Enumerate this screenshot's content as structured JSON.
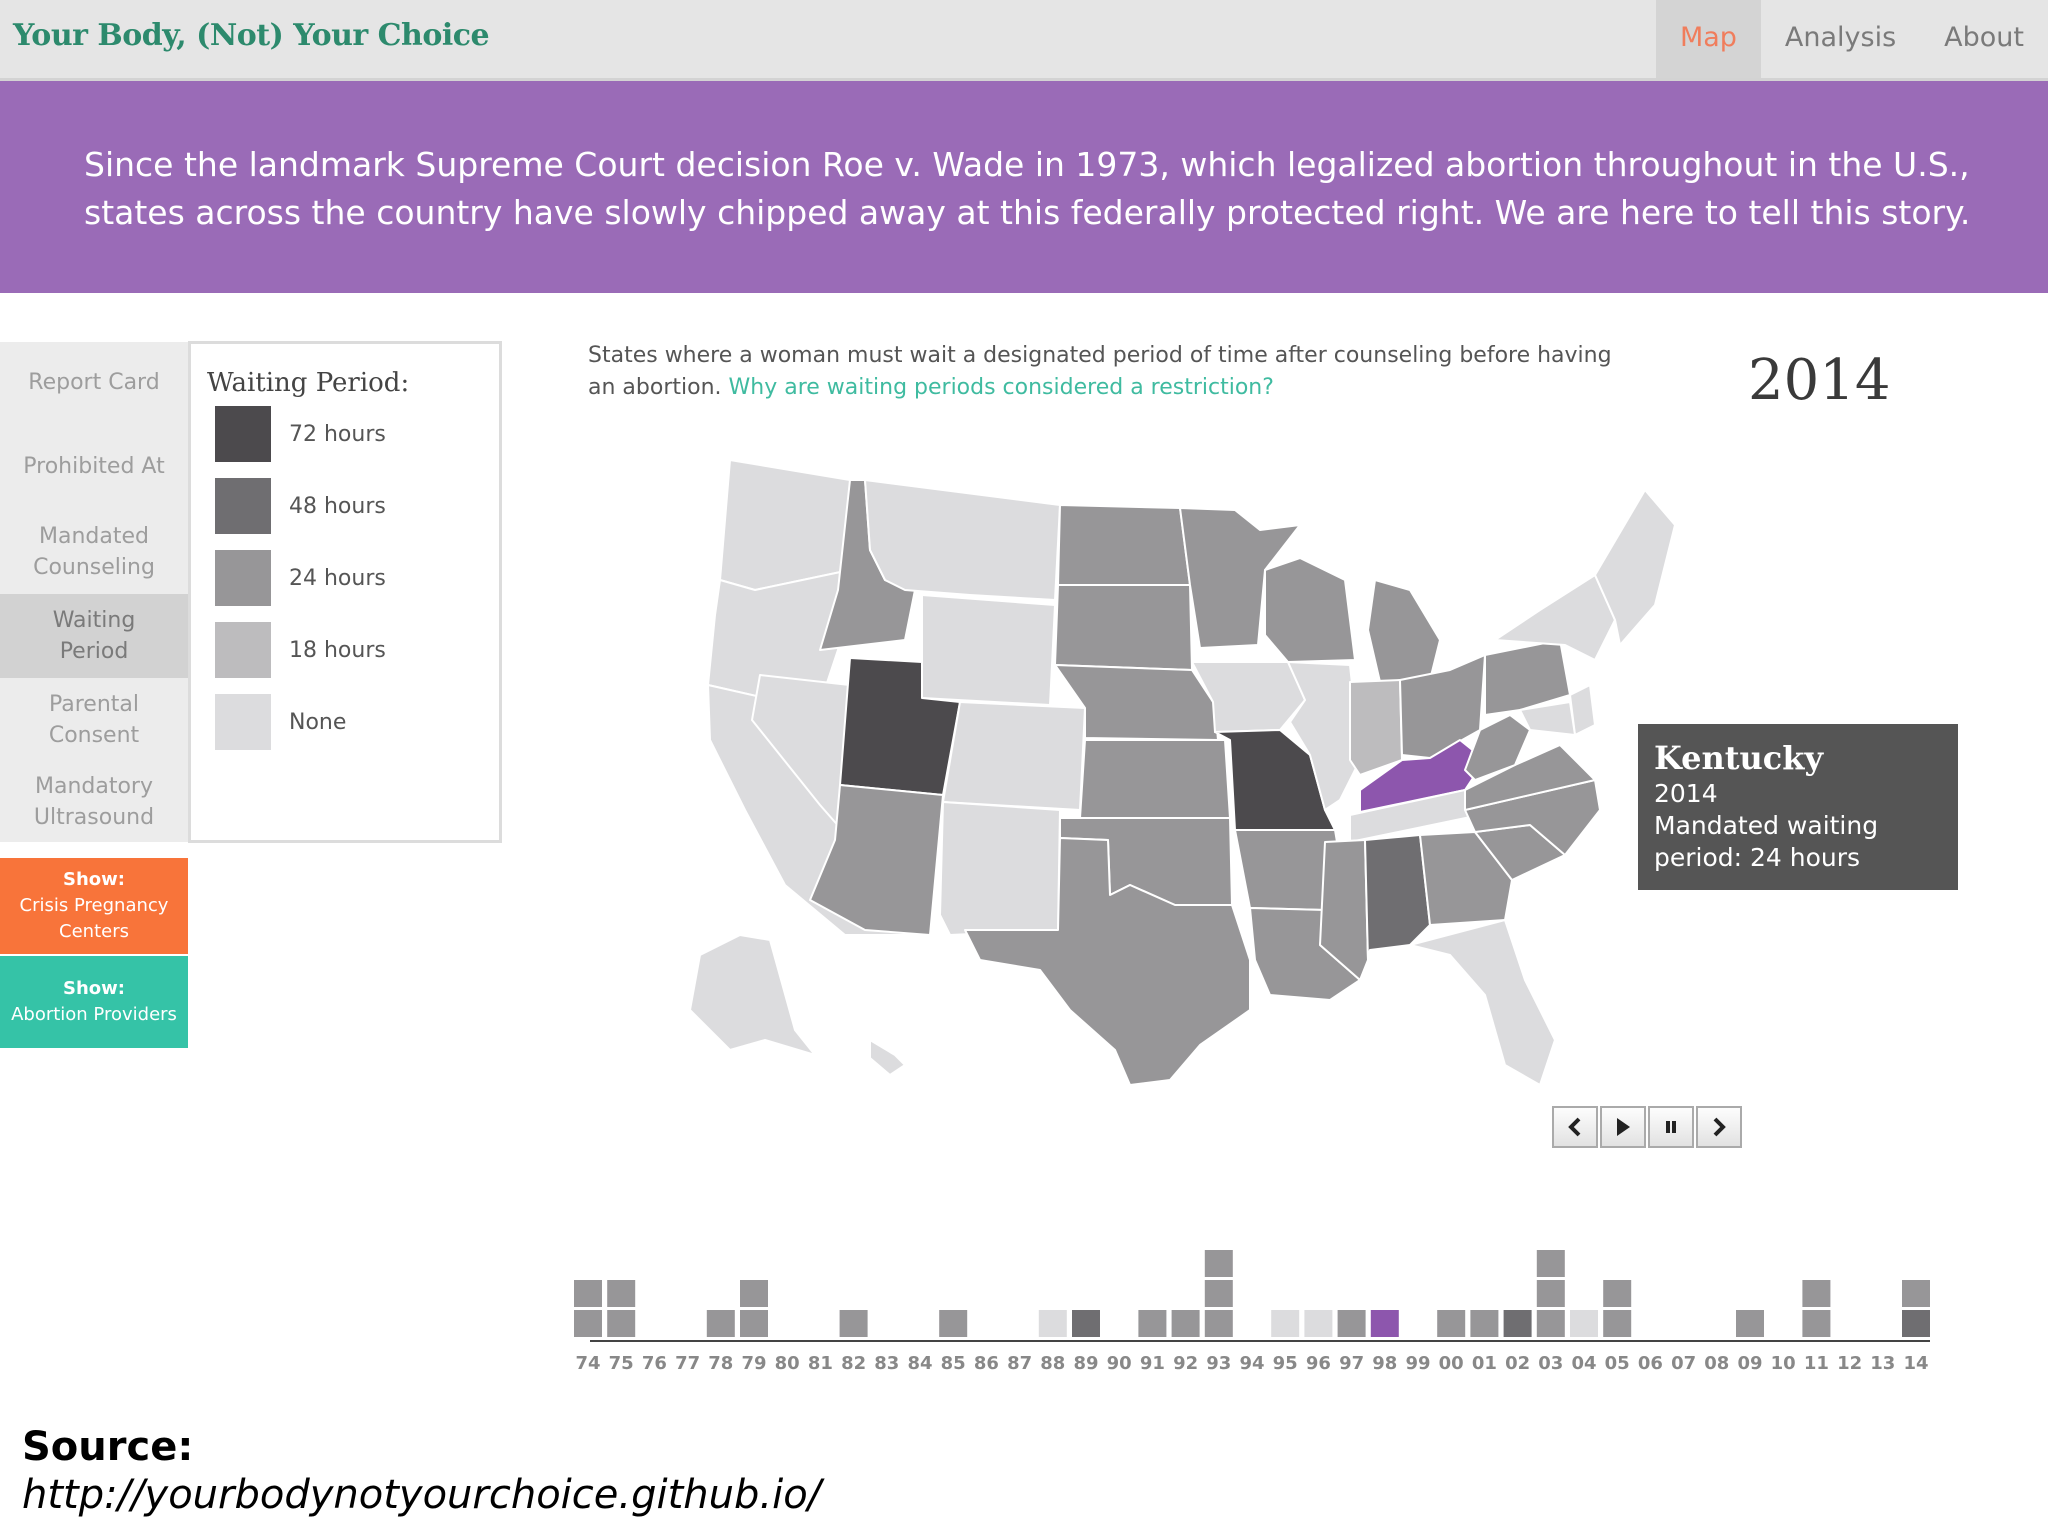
{
  "app": {
    "title": "Your Body, (Not) Your Choice",
    "nav": [
      {
        "label": "Map",
        "active": true
      },
      {
        "label": "Analysis",
        "active": false
      },
      {
        "label": "About",
        "active": false
      }
    ]
  },
  "banner": {
    "text": "Since the landmark Supreme Court decision Roe v. Wade in 1973, which legalized abortion throughout in the U.S., states across the country have slowly chipped away at this federally protected right. We are here to tell this story."
  },
  "sidebar": {
    "items": [
      {
        "label": "Report Card",
        "active": false
      },
      {
        "label": "Prohibited At",
        "active": false
      },
      {
        "label": "Mandated\nCounseling",
        "active": false
      },
      {
        "label": "Waiting\nPeriod",
        "active": true
      },
      {
        "label": "Parental\nConsent",
        "active": false
      },
      {
        "label": "Mandatory\nUltrasound",
        "active": false
      }
    ],
    "show_cpc": {
      "line1": "Show:",
      "line2": "Crisis Pregnancy",
      "line3": "Centers",
      "color": "#f8743a"
    },
    "show_providers": {
      "line1": "Show:",
      "line2": "Abortion Providers",
      "color": "#35c3a7"
    }
  },
  "legend": {
    "title": "Waiting Period:",
    "items": [
      {
        "label": "72 hours",
        "color": "#4c4a4d"
      },
      {
        "label": "48 hours",
        "color": "#6f6e71"
      },
      {
        "label": "24 hours",
        "color": "#979698"
      },
      {
        "label": "18 hours",
        "color": "#bdbcbe"
      },
      {
        "label": "None",
        "color": "#dcdcde"
      }
    ]
  },
  "main": {
    "description": "States where a woman must wait a designated period of time after counseling before having an abortion.",
    "description_link": "Why are waiting periods considered a restriction?",
    "year": "2014"
  },
  "tooltip": {
    "state": "Kentucky",
    "year": "2014",
    "line1": "Mandated waiting",
    "line2": "period: 24 hours"
  },
  "controls": [
    "chevron-left-icon",
    "play-icon",
    "pause-icon",
    "chevron-right-icon"
  ],
  "chart_data": {
    "type": "bar",
    "title": "",
    "categories": [
      "74",
      "75",
      "76",
      "77",
      "78",
      "79",
      "80",
      "81",
      "82",
      "83",
      "84",
      "85",
      "86",
      "87",
      "88",
      "89",
      "90",
      "91",
      "92",
      "93",
      "94",
      "95",
      "96",
      "97",
      "98",
      "99",
      "00",
      "01",
      "02",
      "03",
      "04",
      "05",
      "06",
      "07",
      "08",
      "09",
      "10",
      "11",
      "12",
      "13",
      "14"
    ],
    "values": [
      2,
      2,
      0,
      0,
      1,
      2,
      0,
      0,
      1,
      0,
      0,
      1,
      0,
      0,
      1,
      1,
      0,
      1,
      1,
      3,
      0,
      1,
      1,
      1,
      1,
      0,
      1,
      1,
      1,
      3,
      1,
      2,
      0,
      0,
      0,
      1,
      0,
      2,
      0,
      0,
      2
    ],
    "highlight_category": "98"
  },
  "source": {
    "label": "Source:",
    "url": "http://yourbodynotyourchoice.github.io/"
  }
}
